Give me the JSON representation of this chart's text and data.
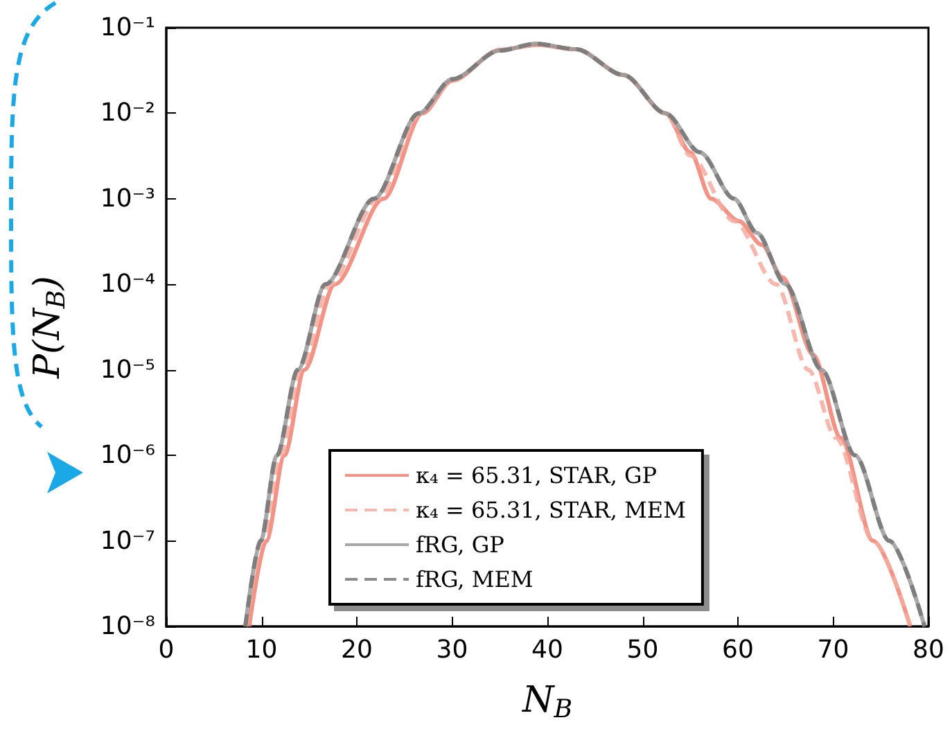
{
  "chart_data": {
    "type": "line",
    "xlabel": "N$_{B}$",
    "ylabel": "P(N$_{B}$)",
    "log": "y",
    "xlim": [
      0,
      80
    ],
    "xticks": [
      0,
      10,
      20,
      30,
      40,
      50,
      60,
      70,
      80
    ],
    "ylim": [
      1e-08,
      0.1
    ],
    "yticks": [
      {
        "value": 1e-08,
        "label": "10⁻⁸"
      },
      {
        "value": 1e-07,
        "label": "10⁻⁷"
      },
      {
        "value": 1e-06,
        "label": "10⁻⁶"
      },
      {
        "value": 1e-05,
        "label": "10⁻⁵"
      },
      {
        "value": 0.0001,
        "label": "10⁻⁴"
      },
      {
        "value": 0.001,
        "label": "10⁻³"
      },
      {
        "value": 0.01,
        "label": "10⁻²"
      },
      {
        "value": 0.1,
        "label": "10⁻¹"
      }
    ],
    "grid": false,
    "legend": "bottom",
    "marker": "none",
    "series": [
      {
        "name": "κ₄ = 65.31, STAR, GP",
        "color": "#f08070",
        "line_style": "solid",
        "x": [
          8.7,
          10.5,
          12.4,
          14.5,
          17.7,
          22.8,
          26.9,
          30,
          35,
          39,
          43,
          48,
          52.4,
          55,
          57.2,
          60.1,
          62.5,
          64.7,
          67.9,
          70.8,
          74.2,
          78.1
        ],
        "values": [
          1e-08,
          1e-07,
          1e-06,
          1e-05,
          0.0001,
          0.001,
          0.01,
          0.024,
          0.055,
          0.063,
          0.056,
          0.028,
          0.01,
          0.0035,
          0.001,
          0.00055,
          0.00029,
          0.00012,
          1.5e-05,
          1.6e-06,
          1e-07,
          1e-08
        ]
      },
      {
        "name": "κ₄ = 65.31, STAR, MEM",
        "color": "#f5aba0",
        "line_style": "dashed",
        "x": [
          8.4,
          10.1,
          12,
          14.1,
          17.2,
          22.2,
          26.7,
          30,
          35,
          39,
          43,
          48,
          52.4,
          55,
          59.6,
          64,
          67.4,
          70.3,
          74.2,
          78.1
        ],
        "values": [
          1e-08,
          1e-07,
          1e-06,
          1e-05,
          0.0001,
          0.001,
          0.01,
          0.024,
          0.055,
          0.063,
          0.056,
          0.028,
          0.01,
          0.0032,
          0.00055,
          0.0001,
          1e-05,
          1.6e-06,
          1e-07,
          1e-08
        ]
      },
      {
        "name": "fRG, GP",
        "color": "#999999",
        "line_style": "solid",
        "x": [
          8.3,
          9.9,
          11.6,
          13.8,
          16.7,
          21.8,
          26.5,
          30,
          35,
          38.8,
          43,
          48,
          52.4,
          56,
          59.6,
          62,
          65,
          68.8,
          72.3,
          75.9,
          79.6
        ],
        "values": [
          1e-08,
          1e-07,
          1e-06,
          1e-05,
          0.0001,
          0.001,
          0.01,
          0.025,
          0.054,
          0.065,
          0.056,
          0.028,
          0.01,
          0.0035,
          0.001,
          0.0004,
          0.0001,
          1e-05,
          1e-06,
          1e-07,
          1e-08
        ]
      },
      {
        "name": "fRG, MEM",
        "color": "#777777",
        "line_style": "dashed",
        "x": [
          8.3,
          9.9,
          11.6,
          13.8,
          16.7,
          21.8,
          26.5,
          30,
          35,
          38.8,
          43,
          48,
          52.4,
          56,
          59.6,
          62,
          65,
          68.8,
          72.3,
          75.9,
          79.6
        ],
        "values": [
          1e-08,
          1e-07,
          1e-06,
          1e-05,
          0.0001,
          0.001,
          0.01,
          0.025,
          0.054,
          0.065,
          0.056,
          0.028,
          0.01,
          0.0035,
          0.001,
          0.0004,
          0.0001,
          1e-05,
          1e-06,
          1e-07,
          1e-08
        ]
      }
    ]
  }
}
